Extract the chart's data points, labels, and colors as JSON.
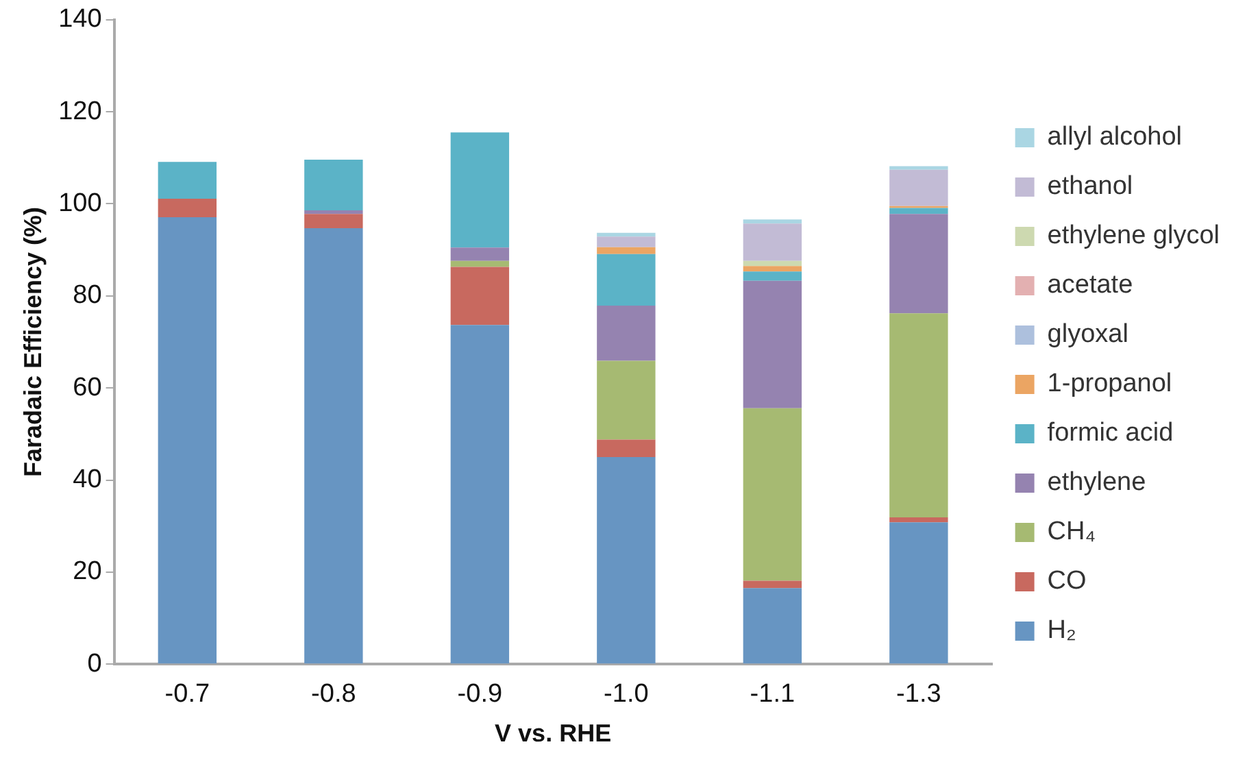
{
  "chart_data": {
    "type": "bar",
    "stacked": true,
    "xlabel": "V vs. RHE",
    "ylabel": "Faradaic Efficiency (%)",
    "categories": [
      "-0.7",
      "-0.8",
      "-0.9",
      "-1.0",
      "-1.1",
      "-1.3"
    ],
    "ylim": [
      0,
      140
    ],
    "yticks": [
      0,
      20,
      40,
      60,
      80,
      100,
      120,
      140
    ],
    "grid": false,
    "legend": "right",
    "series": [
      {
        "name": "H₂",
        "color": "#6795c2",
        "values": [
          97.1,
          94.7,
          73.7,
          45,
          16.5,
          30.8
        ]
      },
      {
        "name": "CO",
        "color": "#c8695f",
        "values": [
          4,
          3.1,
          12.6,
          3.8,
          1.6,
          1.1
        ]
      },
      {
        "name": "CH₄",
        "color": "#a6ba72",
        "values": [
          0,
          0,
          1.3,
          17.1,
          37.5,
          44.3
        ]
      },
      {
        "name": "ethylene",
        "color": "#9583b0",
        "values": [
          0,
          0.8,
          2.9,
          12,
          27.7,
          21.6
        ]
      },
      {
        "name": "formic acid",
        "color": "#5bb3c7",
        "values": [
          8,
          11,
          25,
          11.2,
          2,
          1.3
        ]
      },
      {
        "name": "1-propanol",
        "color": "#eba563",
        "values": [
          0,
          0,
          0,
          1.5,
          1.2,
          0.4
        ]
      },
      {
        "name": "glyoxal",
        "color": "#adc0dd",
        "values": [
          0,
          0,
          0,
          null,
          0,
          null
        ]
      },
      {
        "name": "acetate",
        "color": "#e3b0b1",
        "values": [
          0,
          0,
          0,
          0,
          0,
          null
        ]
      },
      {
        "name": "ethylene glycol",
        "color": "#cdd9b0",
        "values": [
          0,
          0,
          0,
          0,
          1.1,
          null
        ]
      },
      {
        "name": "ethanol",
        "color": "#c2bbd5",
        "values": [
          0,
          0,
          0,
          2.3,
          8.1,
          7.9
        ]
      },
      {
        "name": "allyl alcohol",
        "color": "#aad6e3",
        "values": [
          0,
          0,
          0,
          0.8,
          0.9,
          0.8
        ]
      }
    ]
  }
}
